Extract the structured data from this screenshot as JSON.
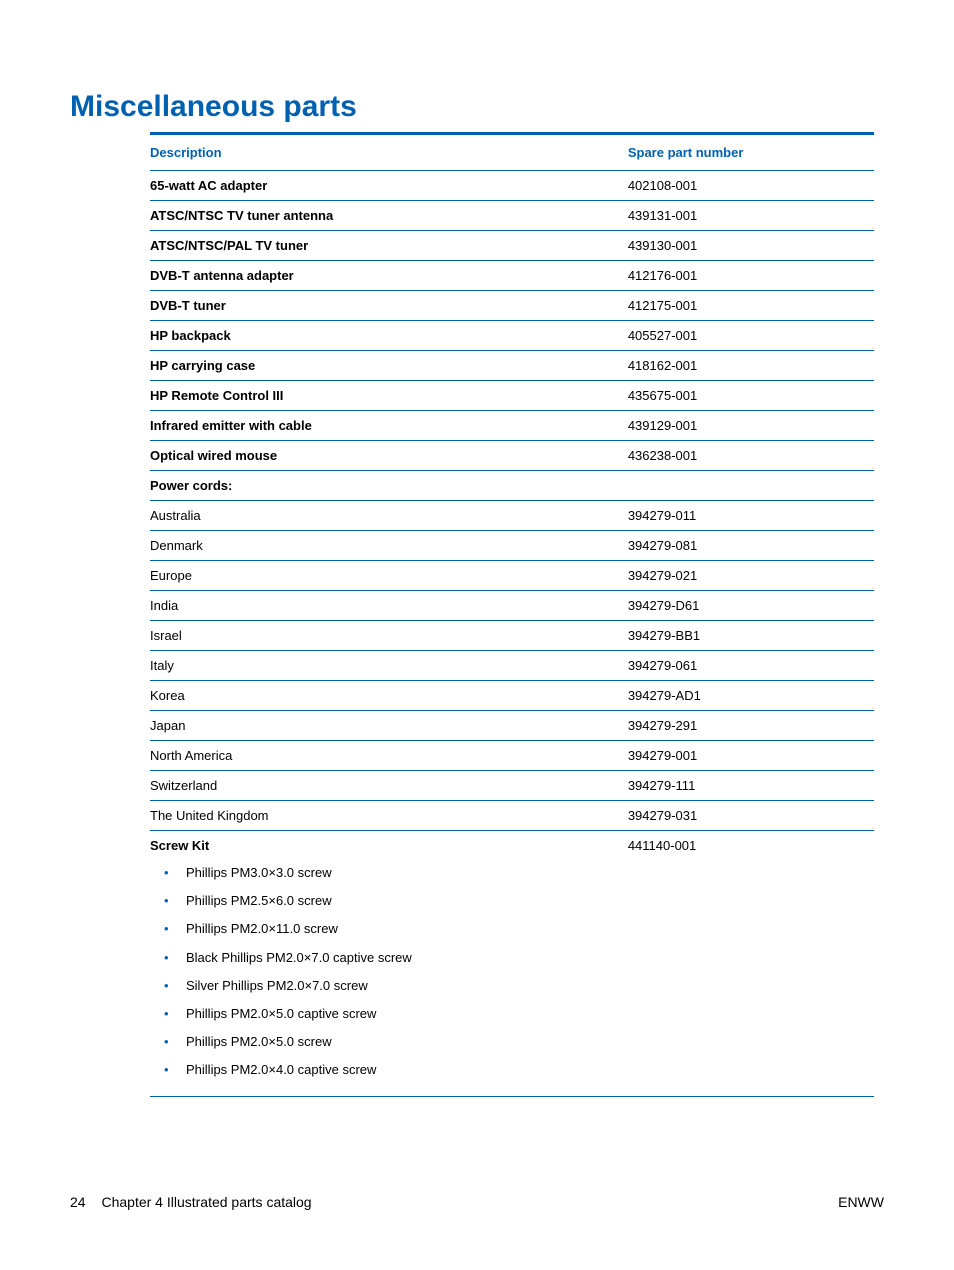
{
  "heading": "Miscellaneous parts",
  "table": {
    "headers": {
      "description": "Description",
      "spare": "Spare part number"
    },
    "rows": [
      {
        "desc": "65-watt AC adapter",
        "part": "402108-001",
        "bold": true
      },
      {
        "desc": "ATSC/NTSC TV tuner antenna",
        "part": "439131-001",
        "bold": true
      },
      {
        "desc": "ATSC/NTSC/PAL TV tuner",
        "part": "439130-001",
        "bold": true
      },
      {
        "desc": "DVB-T antenna adapter",
        "part": "412176-001",
        "bold": true
      },
      {
        "desc": "DVB-T tuner",
        "part": "412175-001",
        "bold": true
      },
      {
        "desc": "HP backpack",
        "part": "405527-001",
        "bold": true
      },
      {
        "desc": "HP carrying case",
        "part": "418162-001",
        "bold": true
      },
      {
        "desc": "HP Remote Control III",
        "part": "435675-001",
        "bold": true
      },
      {
        "desc": "Infrared emitter with cable",
        "part": "439129-001",
        "bold": true
      },
      {
        "desc": "Optical wired mouse",
        "part": "436238-001",
        "bold": true
      },
      {
        "desc": "Power cords:",
        "part": "",
        "bold": true
      },
      {
        "desc": "Australia",
        "part": "394279-011",
        "bold": false
      },
      {
        "desc": "Denmark",
        "part": "394279-081",
        "bold": false
      },
      {
        "desc": "Europe",
        "part": "394279-021",
        "bold": false
      },
      {
        "desc": "India",
        "part": "394279-D61",
        "bold": false
      },
      {
        "desc": "Israel",
        "part": "394279-BB1",
        "bold": false
      },
      {
        "desc": "Italy",
        "part": "394279-061",
        "bold": false
      },
      {
        "desc": "Korea",
        "part": "394279-AD1",
        "bold": false
      },
      {
        "desc": "Japan",
        "part": "394279-291",
        "bold": false
      },
      {
        "desc": "North America",
        "part": "394279-001",
        "bold": false
      },
      {
        "desc": "Switzerland",
        "part": "394279-111",
        "bold": false
      },
      {
        "desc": "The United Kingdom",
        "part": "394279-031",
        "bold": false
      }
    ],
    "screw_kit": {
      "label": "Screw Kit",
      "part": "441140-001",
      "items": [
        "Phillips PM3.0×3.0 screw",
        "Phillips PM2.5×6.0 screw",
        "Phillips PM2.0×11.0 screw",
        "Black Phillips PM2.0×7.0 captive screw",
        "Silver Phillips PM2.0×7.0 screw",
        "Phillips PM2.0×5.0 captive screw",
        "Phillips PM2.0×5.0 screw",
        "Phillips PM2.0×4.0 captive screw"
      ]
    }
  },
  "footer": {
    "page_number": "24",
    "chapter": "Chapter 4   Illustrated parts catalog",
    "right": "ENWW"
  },
  "colors": {
    "brand_blue": "#0061b0",
    "text": "#000000",
    "background": "#ffffff"
  }
}
